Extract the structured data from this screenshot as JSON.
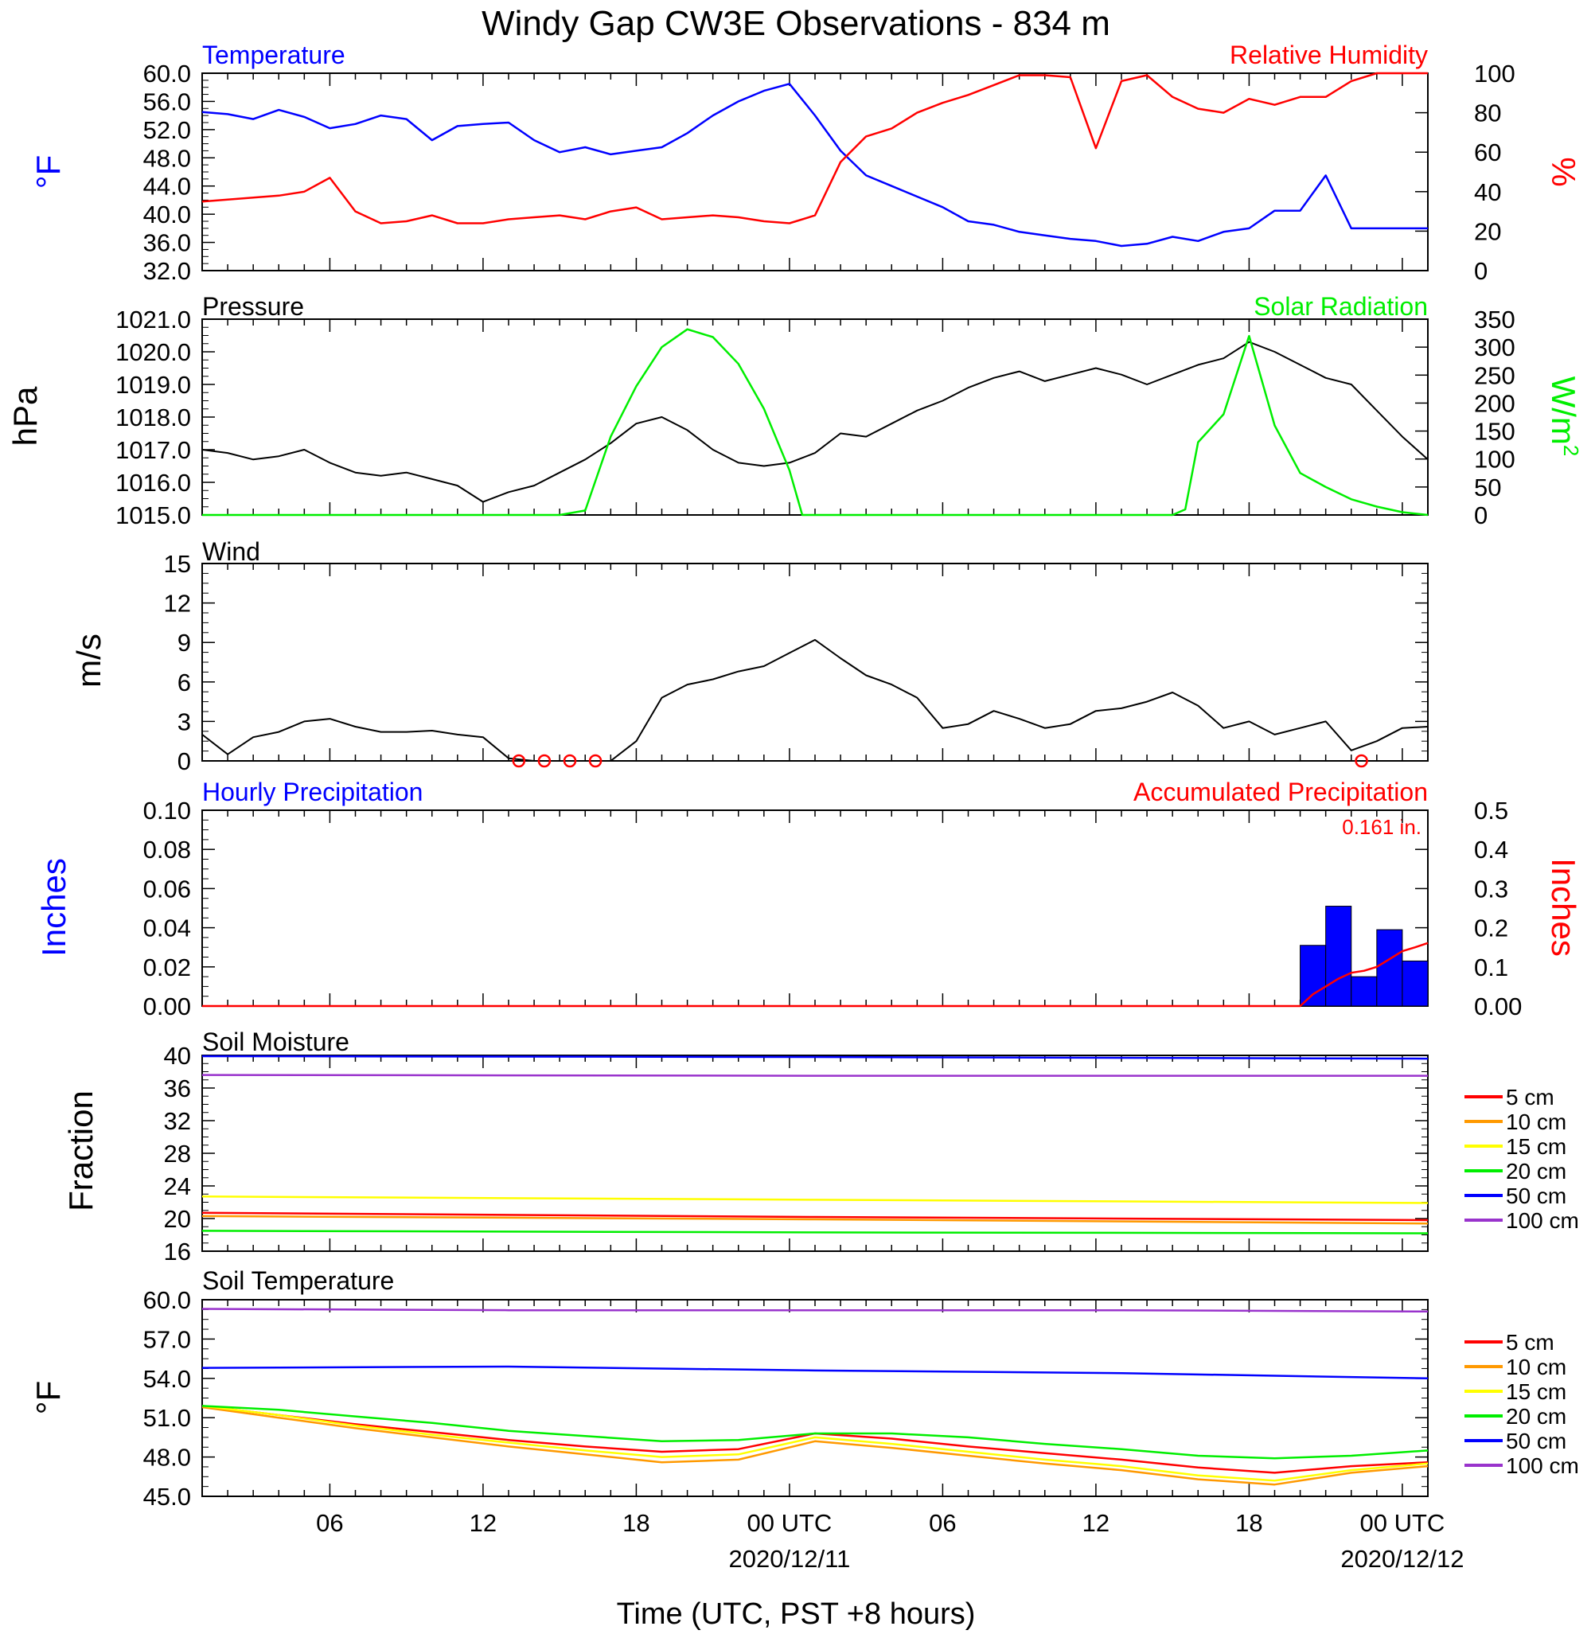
{
  "title": "Windy Gap CW3E Observations - 834 m",
  "x_axis": {
    "label": "Time (UTC, PST +8 hours)",
    "ticks": [
      {
        "hour": 5,
        "label": "06",
        "date": ""
      },
      {
        "hour": 11,
        "label": "12",
        "date": ""
      },
      {
        "hour": 17,
        "label": "18",
        "date": ""
      },
      {
        "hour": 23,
        "label": "00 UTC",
        "date": "2020/12/11"
      },
      {
        "hour": 29,
        "label": "06",
        "date": ""
      },
      {
        "hour": 35,
        "label": "12",
        "date": ""
      },
      {
        "hour": 41,
        "label": "18",
        "date": ""
      },
      {
        "hour": 47,
        "label": "00 UTC",
        "date": "2020/12/12"
      }
    ],
    "range_hours": [
      0,
      48
    ]
  },
  "colors": {
    "blue": "#0000ff",
    "red": "#ff0000",
    "green": "#00ee00",
    "black": "#000000",
    "orange": "#ff9900",
    "yellow": "#ffff00",
    "purple": "#9933cc"
  },
  "chart_data": [
    {
      "type": "line",
      "panel": "temperature_rh",
      "left_title": "Temperature",
      "right_title": "Relative Humidity",
      "ylabel_left": "°F",
      "ylabel_right": "%",
      "ylim_left": [
        32,
        60
      ],
      "ylim_right": [
        0,
        100
      ],
      "yticks_left": [
        "60.0",
        "56.0",
        "52.0",
        "48.0",
        "44.0",
        "40.0",
        "36.0",
        "32.0"
      ],
      "yticks_right": [
        "100",
        "80",
        "60",
        "40",
        "20",
        "0"
      ],
      "series": [
        {
          "axis": "left",
          "color": "#0000ff",
          "x": [
            0,
            1,
            2,
            3,
            4,
            5,
            6,
            7,
            8,
            9,
            10,
            11,
            12,
            13,
            14,
            15,
            16,
            17,
            18,
            19,
            20,
            21,
            22,
            23,
            24,
            25,
            26,
            27,
            28,
            29,
            30,
            31,
            32,
            33,
            34,
            35,
            36,
            37,
            38,
            39,
            40,
            41,
            42,
            43,
            44,
            45,
            46,
            47,
            48
          ],
          "y": [
            54.5,
            54.2,
            53.5,
            54.8,
            53.8,
            52.2,
            52.8,
            54.0,
            53.5,
            50.5,
            52.5,
            52.8,
            53.0,
            50.5,
            48.8,
            49.5,
            48.5,
            49.0,
            49.5,
            51.5,
            54.0,
            56.0,
            57.5,
            58.5,
            54.0,
            49.0,
            45.5,
            44.0,
            42.5,
            41.0,
            39.0,
            38.5,
            37.5,
            37.0,
            36.5,
            36.2,
            35.5,
            35.8,
            36.8,
            36.2,
            37.5,
            38.0,
            40.5,
            40.5,
            45.5,
            38.0,
            38.0,
            38.0,
            38.0
          ]
        },
        {
          "axis": "right",
          "color": "#ff0000",
          "x": [
            0,
            1,
            2,
            3,
            4,
            5,
            6,
            7,
            8,
            9,
            10,
            11,
            12,
            13,
            14,
            15,
            16,
            17,
            18,
            19,
            20,
            21,
            22,
            23,
            24,
            25,
            26,
            27,
            28,
            29,
            30,
            31,
            32,
            33,
            34,
            35,
            36,
            37,
            38,
            39,
            40,
            41,
            42,
            43,
            44,
            45,
            46,
            47,
            48
          ],
          "y": [
            35,
            36,
            37,
            38,
            40,
            47,
            30,
            24,
            25,
            28,
            24,
            24,
            26,
            27,
            28,
            26,
            30,
            32,
            26,
            27,
            28,
            27,
            25,
            24,
            28,
            55,
            68,
            72,
            80,
            85,
            89,
            94,
            99,
            99,
            98,
            62,
            96,
            99,
            88,
            82,
            80,
            87,
            84,
            88,
            88,
            96,
            100,
            100,
            100
          ]
        }
      ]
    },
    {
      "type": "line",
      "panel": "pressure_solar",
      "left_title": "Pressure",
      "right_title": "Solar Radiation",
      "ylabel_left": "hPa",
      "ylabel_right": "W/m2",
      "ylim_left": [
        1015,
        1021
      ],
      "ylim_right": [
        0,
        350
      ],
      "yticks_left": [
        "1021.0",
        "1020.0",
        "1019.0",
        "1018.0",
        "1017.0",
        "1016.0",
        "1015.0"
      ],
      "yticks_right": [
        "350",
        "300",
        "250",
        "200",
        "150",
        "100",
        "50",
        "0"
      ],
      "series": [
        {
          "axis": "left",
          "color": "#000000",
          "x": [
            0,
            1,
            2,
            3,
            4,
            5,
            6,
            7,
            8,
            9,
            10,
            11,
            12,
            13,
            14,
            15,
            16,
            17,
            18,
            19,
            20,
            21,
            22,
            23,
            24,
            25,
            26,
            27,
            28,
            29,
            30,
            31,
            32,
            33,
            34,
            35,
            36,
            37,
            38,
            39,
            40,
            41,
            42,
            43,
            44,
            45,
            46,
            47,
            48
          ],
          "y": [
            1017.0,
            1016.9,
            1016.7,
            1016.8,
            1017.0,
            1016.6,
            1016.3,
            1016.2,
            1016.3,
            1016.1,
            1015.9,
            1015.4,
            1015.7,
            1015.9,
            1016.3,
            1016.7,
            1017.2,
            1017.8,
            1018.0,
            1017.6,
            1017.0,
            1016.6,
            1016.5,
            1016.6,
            1016.9,
            1017.5,
            1017.4,
            1017.8,
            1018.2,
            1018.5,
            1018.9,
            1019.2,
            1019.4,
            1019.1,
            1019.3,
            1019.5,
            1019.3,
            1019.0,
            1019.3,
            1019.6,
            1019.8,
            1020.3,
            1020.0,
            1019.6,
            1019.2,
            1019.0,
            1018.2,
            1017.4,
            1016.7
          ]
        },
        {
          "axis": "right",
          "color": "#00ee00",
          "x": [
            0,
            14,
            15,
            16,
            17,
            18,
            19,
            20,
            21,
            22,
            23,
            23.5,
            24,
            38,
            38.5,
            39,
            40,
            41,
            42,
            43,
            44,
            45,
            46,
            47,
            48
          ],
          "y": [
            0,
            0,
            8,
            140,
            230,
            300,
            332,
            318,
            270,
            190,
            80,
            0,
            0,
            0,
            10,
            130,
            180,
            320,
            160,
            75,
            50,
            28,
            15,
            5,
            0
          ]
        }
      ]
    },
    {
      "type": "line",
      "panel": "wind",
      "left_title": "Wind",
      "ylabel_left": "m/s",
      "ylim_left": [
        0,
        15
      ],
      "yticks_left": [
        "15",
        "12",
        "9",
        "6",
        "3",
        "0"
      ],
      "series": [
        {
          "axis": "left",
          "color": "#000000",
          "x": [
            0,
            1,
            2,
            3,
            4,
            5,
            6,
            7,
            8,
            9,
            10,
            11,
            12,
            13,
            14,
            15,
            16,
            17,
            18,
            19,
            20,
            21,
            22,
            23,
            24,
            25,
            26,
            27,
            28,
            29,
            30,
            31,
            32,
            33,
            34,
            35,
            36,
            37,
            38,
            39,
            40,
            41,
            42,
            43,
            44,
            45,
            46,
            47,
            48
          ],
          "y": [
            2,
            0.5,
            1.8,
            2.2,
            3.0,
            3.2,
            2.6,
            2.2,
            2.2,
            2.3,
            2.0,
            1.8,
            0.2,
            0,
            0,
            0,
            0,
            1.5,
            4.8,
            5.8,
            6.2,
            6.8,
            7.2,
            8.2,
            9.2,
            7.8,
            6.5,
            5.8,
            4.8,
            2.5,
            2.8,
            3.8,
            3.2,
            2.5,
            2.8,
            3.8,
            4.0,
            4.5,
            5.2,
            4.2,
            2.5,
            3.0,
            2.0,
            2.5,
            3.0,
            0.8,
            1.5,
            2.5,
            2.6
          ]
        }
      ],
      "calm_marks_hour": [
        12,
        13,
        14,
        15,
        45
      ]
    },
    {
      "type": "bar",
      "panel": "precipitation",
      "left_title": "Hourly Precipitation",
      "right_title": "Accumulated Precipitation",
      "total_label": "0.161 in.",
      "ylabel_left": "Inches",
      "ylabel_right": "Inches",
      "ylim_left": [
        0,
        0.1
      ],
      "ylim_right": [
        0,
        0.5
      ],
      "yticks_left": [
        "0.10",
        "0.08",
        "0.06",
        "0.04",
        "0.02",
        "0.00"
      ],
      "yticks_right": [
        "0.5",
        "0.4",
        "0.3",
        "0.2",
        "0.1",
        "0.00"
      ],
      "bars": {
        "color": "#0000ff",
        "start_hour": [
          43,
          44,
          45,
          46,
          47
        ],
        "values": [
          0.031,
          0.051,
          0.015,
          0.039,
          0.023
        ]
      },
      "series": [
        {
          "axis": "right",
          "color": "#ff0000",
          "x": [
            0,
            43,
            43.5,
            44,
            44.5,
            45,
            45.5,
            46,
            46.5,
            47,
            47.5,
            48
          ],
          "y": [
            0,
            0,
            0.03,
            0.05,
            0.07,
            0.085,
            0.09,
            0.1,
            0.12,
            0.14,
            0.15,
            0.161
          ]
        }
      ]
    },
    {
      "type": "line",
      "panel": "soil_moisture",
      "left_title": "Soil Moisture",
      "ylabel_left": "Fraction",
      "ylim_left": [
        16,
        40
      ],
      "yticks_left": [
        "40",
        "36",
        "32",
        "28",
        "24",
        "20",
        "16"
      ],
      "legend": [
        "5 cm",
        "10 cm",
        "15 cm",
        "20 cm",
        "50 cm",
        "100 cm"
      ],
      "series": [
        {
          "name": "5 cm",
          "color": "#ff0000",
          "x": [
            0,
            24,
            48
          ],
          "y": [
            20.7,
            20.2,
            19.8
          ]
        },
        {
          "name": "10 cm",
          "color": "#ff9900",
          "x": [
            0,
            24,
            48
          ],
          "y": [
            20.3,
            19.9,
            19.4
          ]
        },
        {
          "name": "15 cm",
          "color": "#ffff00",
          "x": [
            0,
            24,
            48
          ],
          "y": [
            22.7,
            22.3,
            21.9
          ]
        },
        {
          "name": "20 cm",
          "color": "#00ee00",
          "x": [
            0,
            24,
            48
          ],
          "y": [
            18.5,
            18.3,
            18.2
          ]
        },
        {
          "name": "50 cm",
          "color": "#0000ff",
          "x": [
            0,
            24,
            48
          ],
          "y": [
            39.9,
            39.8,
            39.6
          ]
        },
        {
          "name": "100 cm",
          "color": "#9933cc",
          "x": [
            0,
            24,
            48
          ],
          "y": [
            37.6,
            37.5,
            37.5
          ]
        }
      ]
    },
    {
      "type": "line",
      "panel": "soil_temperature",
      "left_title": "Soil Temperature",
      "ylabel_left": "°F",
      "ylim_left": [
        45,
        60
      ],
      "yticks_left": [
        "60.0",
        "57.0",
        "54.0",
        "51.0",
        "48.0",
        "45.0"
      ],
      "legend": [
        "5 cm",
        "10 cm",
        "15 cm",
        "20 cm",
        "50 cm",
        "100 cm"
      ],
      "series": [
        {
          "name": "5 cm",
          "color": "#ff0000",
          "x": [
            0,
            3,
            6,
            9,
            12,
            15,
            18,
            21,
            24,
            27,
            30,
            33,
            36,
            39,
            42,
            45,
            48
          ],
          "y": [
            51.9,
            51.2,
            50.5,
            49.9,
            49.3,
            48.8,
            48.4,
            48.6,
            49.8,
            49.4,
            48.8,
            48.3,
            47.8,
            47.2,
            46.8,
            47.3,
            47.6
          ]
        },
        {
          "name": "10 cm",
          "color": "#ff9900",
          "x": [
            0,
            3,
            6,
            9,
            12,
            15,
            18,
            21,
            24,
            27,
            30,
            33,
            36,
            39,
            42,
            45,
            48
          ],
          "y": [
            51.8,
            51.0,
            50.2,
            49.5,
            48.8,
            48.2,
            47.6,
            47.8,
            49.2,
            48.7,
            48.1,
            47.5,
            47.0,
            46.3,
            45.9,
            46.8,
            47.3
          ]
        },
        {
          "name": "15 cm",
          "color": "#ffff00",
          "x": [
            0,
            3,
            6,
            9,
            12,
            15,
            18,
            21,
            24,
            27,
            30,
            33,
            36,
            39,
            42,
            45,
            48
          ],
          "y": [
            51.9,
            51.2,
            50.4,
            49.7,
            49.1,
            48.5,
            48.0,
            48.2,
            49.5,
            49.0,
            48.4,
            47.8,
            47.3,
            46.6,
            46.2,
            47.0,
            47.5
          ]
        },
        {
          "name": "20 cm",
          "color": "#00ee00",
          "x": [
            0,
            3,
            6,
            9,
            12,
            15,
            18,
            21,
            24,
            27,
            30,
            33,
            36,
            39,
            42,
            45,
            48
          ],
          "y": [
            51.9,
            51.6,
            51.1,
            50.6,
            50.0,
            49.6,
            49.2,
            49.3,
            49.8,
            49.8,
            49.5,
            49.0,
            48.6,
            48.1,
            47.9,
            48.1,
            48.5
          ]
        },
        {
          "name": "50 cm",
          "color": "#0000ff",
          "x": [
            0,
            12,
            24,
            36,
            48
          ],
          "y": [
            54.8,
            54.9,
            54.6,
            54.4,
            54.0
          ]
        },
        {
          "name": "100 cm",
          "color": "#9933cc",
          "x": [
            0,
            12,
            24,
            36,
            48
          ],
          "y": [
            59.3,
            59.2,
            59.2,
            59.2,
            59.1
          ]
        }
      ]
    }
  ]
}
